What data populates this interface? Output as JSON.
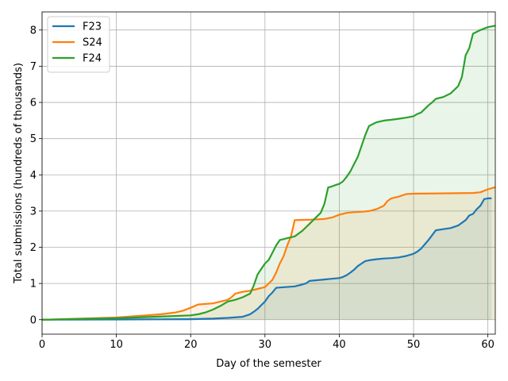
{
  "chart_data": {
    "type": "line",
    "title": "",
    "xlabel": "Day of the semester",
    "ylabel": "Total submissions (hundreds of thousands)",
    "xlim": [
      0,
      61
    ],
    "ylim": [
      -0.4,
      8.5
    ],
    "xticks": [
      0,
      10,
      20,
      30,
      40,
      50,
      60
    ],
    "yticks": [
      0,
      1,
      2,
      3,
      4,
      5,
      6,
      7,
      8
    ],
    "grid": true,
    "legend_position": "top-left",
    "series": [
      {
        "name": "F23",
        "color": "#1f77b4",
        "fill": true,
        "x": [
          0,
          10,
          15,
          20,
          23,
          25,
          27,
          28,
          28.5,
          29,
          29.5,
          30,
          30.5,
          31,
          31.5,
          32,
          34,
          35,
          35.5,
          36,
          37,
          38,
          39,
          40,
          40.5,
          41,
          41.5,
          42,
          42.5,
          43,
          43.5,
          44,
          45,
          46,
          47,
          48,
          49,
          50,
          50.5,
          51,
          51.5,
          52,
          53,
          54,
          55,
          56,
          57,
          57.5,
          58,
          58.5,
          59,
          59.5,
          60,
          60.5
        ],
        "values": [
          0,
          0.005,
          0.01,
          0.015,
          0.03,
          0.05,
          0.08,
          0.15,
          0.22,
          0.3,
          0.4,
          0.5,
          0.65,
          0.75,
          0.88,
          0.89,
          0.92,
          0.97,
          1.0,
          1.07,
          1.09,
          1.11,
          1.13,
          1.15,
          1.18,
          1.23,
          1.3,
          1.38,
          1.48,
          1.55,
          1.62,
          1.64,
          1.67,
          1.69,
          1.7,
          1.72,
          1.76,
          1.82,
          1.88,
          1.96,
          2.08,
          2.2,
          2.47,
          2.5,
          2.53,
          2.6,
          2.75,
          2.88,
          2.92,
          3.05,
          3.15,
          3.33,
          3.35,
          3.35
        ]
      },
      {
        "name": "S24",
        "color": "#ff7f0e",
        "fill": true,
        "x": [
          0,
          10,
          14,
          16,
          18,
          19,
          20,
          21,
          23,
          24,
          25,
          25.5,
          26,
          27,
          28,
          29,
          30,
          30.5,
          31,
          31.5,
          32,
          32.5,
          33,
          33.5,
          34,
          36,
          38,
          39,
          40,
          41,
          42,
          43,
          44,
          45,
          46,
          46.5,
          47,
          48,
          49,
          50,
          55,
          58,
          59,
          60,
          61
        ],
        "values": [
          0,
          0.06,
          0.12,
          0.15,
          0.2,
          0.25,
          0.33,
          0.42,
          0.45,
          0.5,
          0.55,
          0.62,
          0.72,
          0.77,
          0.8,
          0.85,
          0.9,
          1.0,
          1.1,
          1.3,
          1.55,
          1.75,
          2.05,
          2.3,
          2.75,
          2.76,
          2.78,
          2.82,
          2.9,
          2.95,
          2.97,
          2.98,
          3.0,
          3.05,
          3.15,
          3.28,
          3.35,
          3.4,
          3.47,
          3.48,
          3.49,
          3.5,
          3.52,
          3.6,
          3.66
        ]
      },
      {
        "name": "F24",
        "color": "#2ca02c",
        "fill": true,
        "x": [
          0,
          10,
          15,
          20,
          21,
          22,
          23,
          24,
          25,
          26,
          27,
          28,
          28.5,
          29,
          29.5,
          30,
          30.5,
          31,
          31.5,
          32,
          33,
          34,
          35,
          36,
          37,
          37.5,
          38,
          38.5,
          39,
          39.5,
          40,
          40.5,
          41,
          41.5,
          42,
          42.5,
          43,
          43.5,
          44,
          45,
          46,
          47,
          48,
          49,
          50,
          50.5,
          51,
          51.5,
          52,
          52.5,
          53,
          54,
          55,
          55.5,
          56,
          56.5,
          57,
          57.5,
          58,
          58.5,
          59,
          60,
          61
        ],
        "values": [
          0,
          0.04,
          0.08,
          0.12,
          0.15,
          0.2,
          0.28,
          0.38,
          0.5,
          0.55,
          0.62,
          0.72,
          0.95,
          1.25,
          1.4,
          1.55,
          1.65,
          1.85,
          2.05,
          2.2,
          2.25,
          2.3,
          2.45,
          2.65,
          2.85,
          2.95,
          3.2,
          3.65,
          3.68,
          3.72,
          3.75,
          3.82,
          3.95,
          4.1,
          4.3,
          4.5,
          4.8,
          5.1,
          5.35,
          5.45,
          5.5,
          5.52,
          5.55,
          5.58,
          5.62,
          5.68,
          5.72,
          5.82,
          5.92,
          6.0,
          6.1,
          6.15,
          6.25,
          6.35,
          6.45,
          6.7,
          7.3,
          7.5,
          7.9,
          7.95,
          8.0,
          8.08,
          8.12
        ]
      }
    ]
  }
}
